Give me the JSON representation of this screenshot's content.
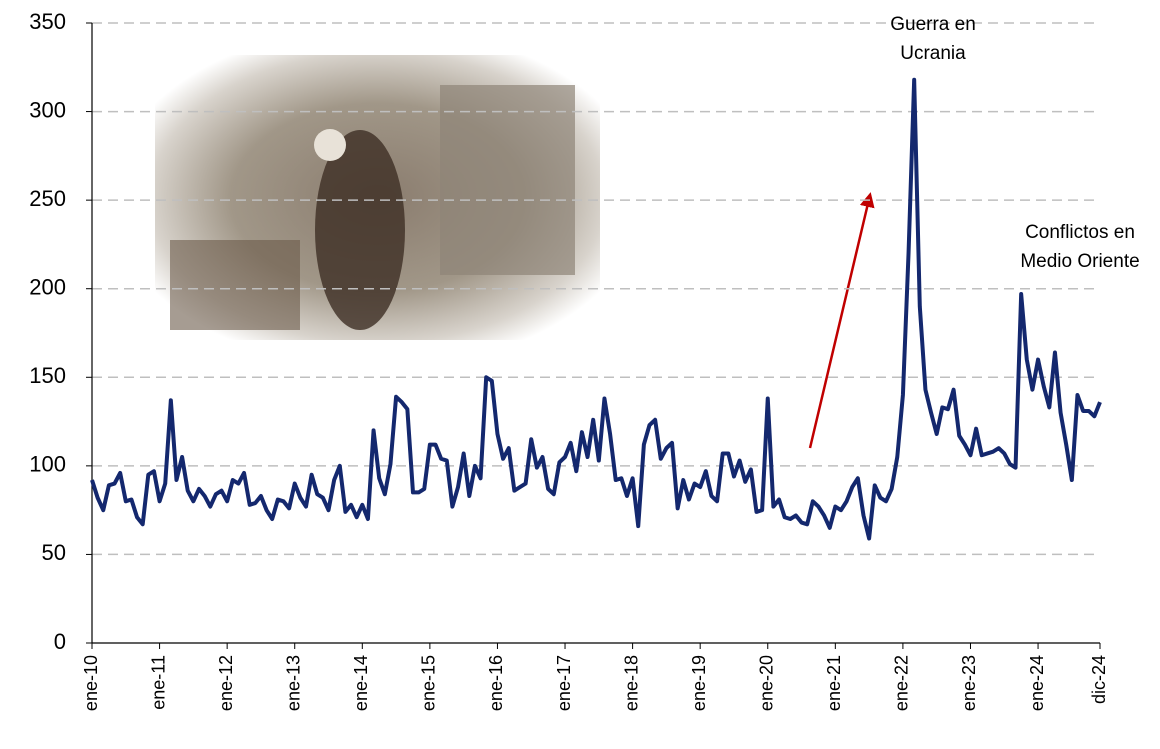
{
  "chart_data": {
    "type": "line",
    "categories": [
      "ene-10",
      null,
      null,
      null,
      null,
      null,
      null,
      null,
      null,
      null,
      null,
      null,
      "ene-11",
      null,
      null,
      null,
      null,
      null,
      null,
      null,
      null,
      null,
      null,
      null,
      "ene-12",
      null,
      null,
      null,
      null,
      null,
      null,
      null,
      null,
      null,
      null,
      null,
      "ene-13",
      null,
      null,
      null,
      null,
      null,
      null,
      null,
      null,
      null,
      null,
      null,
      "ene-14",
      null,
      null,
      null,
      null,
      null,
      null,
      null,
      null,
      null,
      null,
      null,
      "ene-15",
      null,
      null,
      null,
      null,
      null,
      null,
      null,
      null,
      null,
      null,
      null,
      "ene-16",
      null,
      null,
      null,
      null,
      null,
      null,
      null,
      null,
      null,
      null,
      null,
      "ene-17",
      null,
      null,
      null,
      null,
      null,
      null,
      null,
      null,
      null,
      null,
      null,
      "ene-18",
      null,
      null,
      null,
      null,
      null,
      null,
      null,
      null,
      null,
      null,
      null,
      "ene-19",
      null,
      null,
      null,
      null,
      null,
      null,
      null,
      null,
      null,
      null,
      null,
      "ene-20",
      null,
      null,
      null,
      null,
      null,
      null,
      null,
      null,
      null,
      null,
      null,
      "ene-21",
      null,
      null,
      null,
      null,
      null,
      null,
      null,
      null,
      null,
      null,
      null,
      "ene-22",
      null,
      null,
      null,
      null,
      null,
      null,
      null,
      null,
      null,
      null,
      null,
      "ene-23",
      null,
      null,
      null,
      null,
      null,
      null,
      null,
      null,
      null,
      null,
      null,
      "ene-24",
      null,
      null,
      null,
      null,
      null,
      null,
      null,
      null,
      null,
      null,
      "dic-24"
    ],
    "series": [
      {
        "color": "#14286e",
        "values": [
          92,
          82,
          75,
          89,
          90,
          96,
          80,
          81,
          71,
          67,
          95,
          97,
          80,
          90,
          137,
          92,
          105,
          86,
          80,
          87,
          83,
          77,
          84,
          86,
          80,
          92,
          90,
          96,
          78,
          79,
          83,
          75,
          70,
          81,
          80,
          76,
          90,
          82,
          77,
          95,
          84,
          82,
          75,
          92,
          100,
          74,
          78,
          71,
          78,
          70,
          120,
          93,
          84,
          101,
          139,
          136,
          132,
          85,
          85,
          87,
          112,
          112,
          104,
          103,
          77,
          88,
          107,
          83,
          100,
          93,
          150,
          148,
          118,
          104,
          110,
          86,
          88,
          90,
          115,
          99,
          105,
          87,
          84,
          102,
          105,
          113,
          97,
          119,
          105,
          126,
          103,
          138,
          118,
          92,
          93,
          83,
          93,
          66,
          112,
          123,
          126,
          104,
          110,
          113,
          76,
          92,
          81,
          90,
          88,
          97,
          83,
          80,
          107,
          107,
          94,
          103,
          91,
          98,
          74,
          75,
          138,
          77,
          81,
          71,
          70,
          72,
          68,
          67,
          80,
          77,
          72,
          65,
          77,
          75,
          80,
          88,
          93,
          72,
          59,
          89,
          82,
          80,
          87,
          105,
          140,
          220,
          318,
          190,
          143,
          130,
          118,
          133,
          132,
          143,
          117,
          112,
          106,
          121,
          106,
          107,
          108,
          110,
          107,
          101,
          99,
          197,
          160,
          143,
          160,
          145,
          133,
          164,
          130,
          112,
          92,
          140,
          131,
          131,
          128,
          136
        ]
      }
    ],
    "ylim": [
      0,
      350
    ],
    "yticks": [
      0,
      50,
      100,
      150,
      200,
      250,
      300,
      350
    ],
    "grid": true,
    "annotations": [
      [
        "Guerra en",
        "Ucrania"
      ],
      [
        "Conflictos en",
        "Medio Oriente"
      ]
    ]
  }
}
